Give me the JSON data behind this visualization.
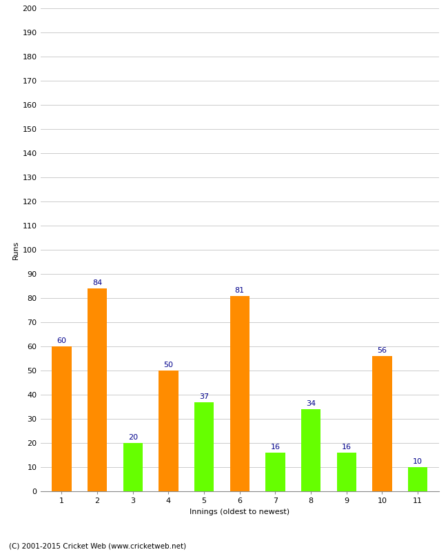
{
  "xlabel": "Innings (oldest to newest)",
  "ylabel": "Runs",
  "categories": [
    "1",
    "2",
    "3",
    "4",
    "5",
    "6",
    "7",
    "8",
    "9",
    "10",
    "11"
  ],
  "values": [
    60,
    84,
    20,
    50,
    37,
    81,
    16,
    34,
    16,
    56,
    10
  ],
  "colors": [
    "#FF8C00",
    "#FF8C00",
    "#66FF00",
    "#FF8C00",
    "#66FF00",
    "#FF8C00",
    "#66FF00",
    "#66FF00",
    "#66FF00",
    "#FF8C00",
    "#66FF00"
  ],
  "ylim": [
    0,
    200
  ],
  "ytick_step": 10,
  "label_color": "#00008B",
  "label_fontsize": 8,
  "axis_fontsize": 8,
  "background_color": "#FFFFFF",
  "grid_color": "#CCCCCC",
  "footer": "(C) 2001-2015 Cricket Web (www.cricketweb.net)"
}
